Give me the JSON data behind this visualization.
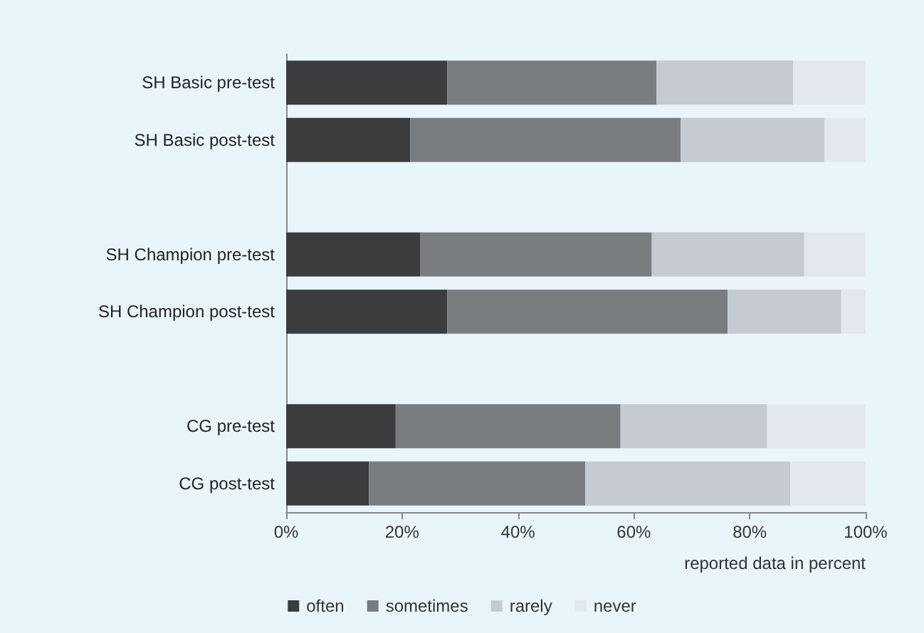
{
  "chart_data": {
    "type": "bar",
    "orientation": "horizontal",
    "stacked": true,
    "categories": [
      "SH Basic pre-test",
      "SH Basic post-test",
      null,
      "SH Champion pre-test",
      "SH Champion post-test",
      null,
      "CG pre-test",
      "CG post-test"
    ],
    "series": [
      {
        "name": "often",
        "color": "#3a3c3e",
        "values": [
          27.8,
          21.4,
          null,
          23.1,
          27.8,
          null,
          18.9,
          14.3
        ]
      },
      {
        "name": "sometimes",
        "color": "#7a7d80",
        "values": [
          36.1,
          46.7,
          null,
          40.0,
          48.4,
          null,
          38.8,
          37.3
        ]
      },
      {
        "name": "rarely",
        "color": "#c5cbd0",
        "values": [
          23.6,
          24.8,
          null,
          26.3,
          19.6,
          null,
          25.3,
          35.4
        ]
      },
      {
        "name": "never",
        "color": "#e2e8ed",
        "values": [
          12.5,
          7.1,
          null,
          10.6,
          4.2,
          null,
          17.0,
          13.0
        ]
      }
    ],
    "xlim": [
      0,
      100
    ],
    "xticks": [
      {
        "value": 0,
        "label": "0%"
      },
      {
        "value": 20,
        "label": "20%"
      },
      {
        "value": 40,
        "label": "40%"
      },
      {
        "value": 60,
        "label": "60%"
      },
      {
        "value": 80,
        "label": "80%"
      },
      {
        "value": 100,
        "label": "100%"
      }
    ],
    "xlabel": "reported data in percent",
    "legend": "bottom",
    "grid": false
  }
}
